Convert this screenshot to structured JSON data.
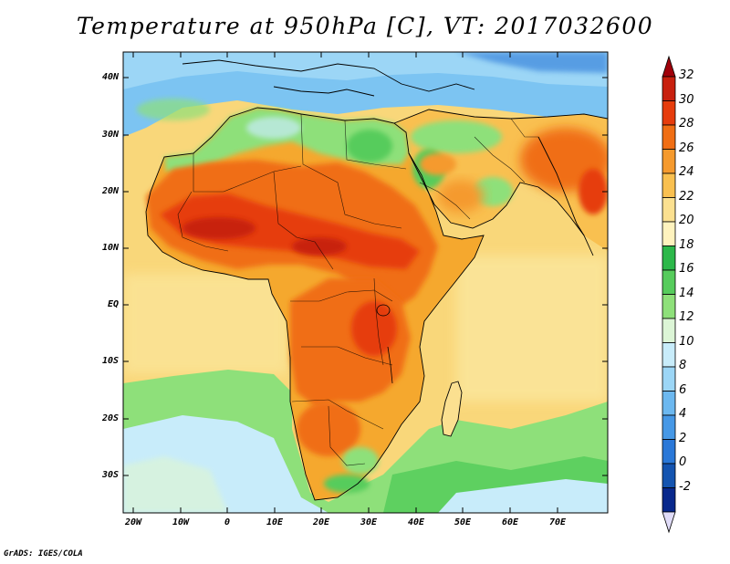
{
  "title": "Temperature at 950hPa [C], VT: 2017032600",
  "footer": "GrADS: IGES/COLA",
  "lat_labels": [
    "40N",
    "30N",
    "20N",
    "10N",
    "EQ",
    "10S",
    "20S",
    "30S"
  ],
  "lon_labels": [
    "20W",
    "10W",
    "0",
    "10E",
    "20E",
    "30E",
    "40E",
    "50E",
    "60E",
    "70E"
  ],
  "colorbar": {
    "labels": [
      "32",
      "30",
      "28",
      "26",
      "24",
      "22",
      "20",
      "18",
      "16",
      "14",
      "12",
      "10",
      "8",
      "6",
      "4",
      "2",
      "0",
      "-2"
    ],
    "colors_top_to_bottom": [
      "#c8200e",
      "#e63c0c",
      "#f06e14",
      "#f59a2e",
      "#f9c050",
      "#fbe090",
      "#fff3be",
      "#2cb84a",
      "#56cc5c",
      "#8ee07a",
      "#dcf5d6",
      "#c8ecfa",
      "#9cd6f6",
      "#6cb8f0",
      "#4698e6",
      "#2a78d8",
      "#1454b0",
      "#08288c"
    ],
    "top_arrow_color": "#a0000a",
    "bottom_arrow_color": "#e0dcf8"
  },
  "map": {
    "lon_range": [
      -23,
      80
    ],
    "lat_range": [
      -37,
      45
    ],
    "colors": {
      "ocean_warm": "#f9d77a",
      "ocean_mid": "#fbe9a2",
      "green_light": "#8ee07a",
      "green_mid": "#56cc5c",
      "green_dark": "#2cb84a",
      "blue_pale": "#c8ecfa",
      "blue_mid": "#7cc4f2",
      "blue_dark": "#2a78d8",
      "orange": "#f59a2e",
      "orange_deep": "#f06e14",
      "red": "#e63c0c",
      "red_deep": "#c8200e",
      "border": "#000000"
    }
  }
}
